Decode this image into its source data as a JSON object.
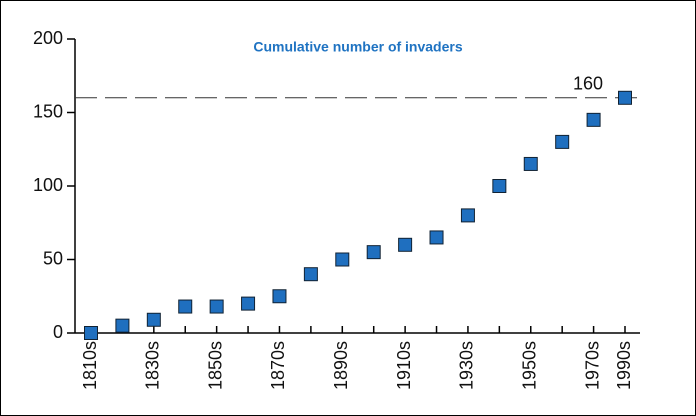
{
  "chart_data": {
    "type": "scatter",
    "title": "Cumulative number of invaders",
    "categories": [
      "1810s",
      null,
      "1830s",
      null,
      "1850s",
      null,
      "1870s",
      null,
      "1890s",
      null,
      "1910s",
      null,
      "1930s",
      null,
      "1950s",
      null,
      "1970s",
      "1990s"
    ],
    "values": [
      0,
      5,
      9,
      18,
      18,
      20,
      25,
      40,
      50,
      55,
      60,
      65,
      80,
      100,
      115,
      130,
      145,
      160
    ],
    "color": "#1f6fbf",
    "ylim": [
      0,
      200
    ],
    "yticks": [
      0,
      50,
      100,
      150,
      200
    ],
    "hline": 160
  }
}
